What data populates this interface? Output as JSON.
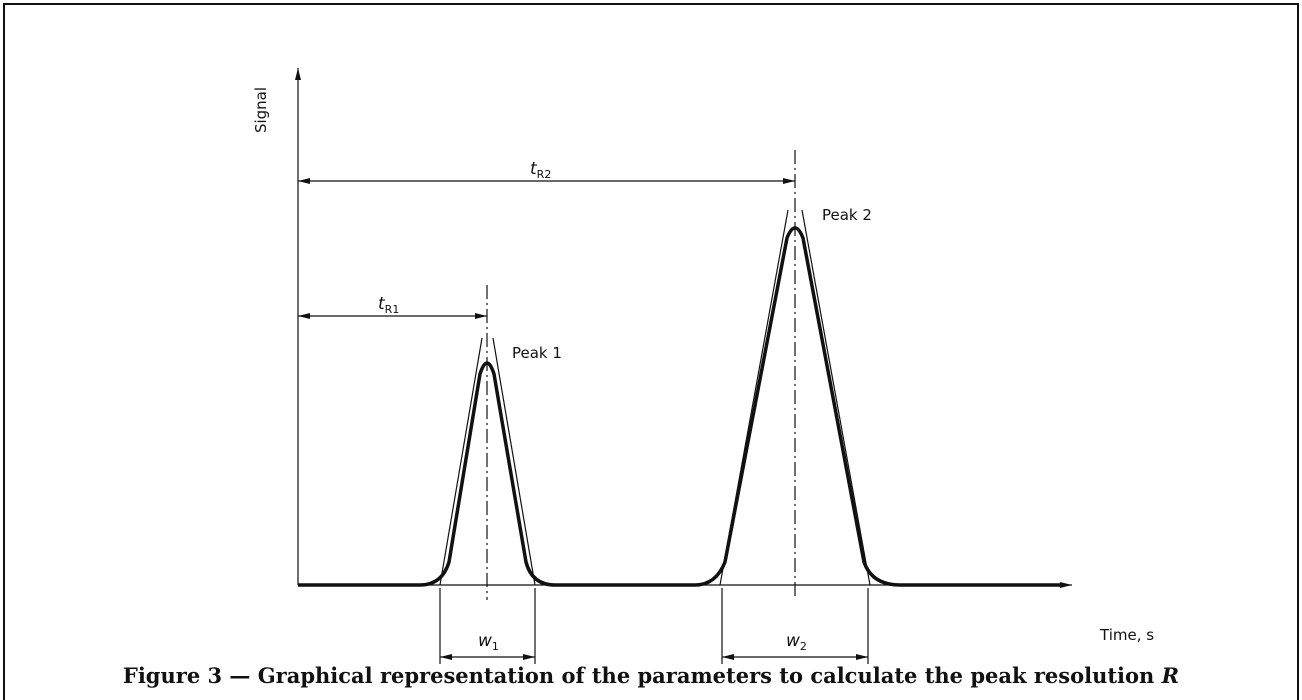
{
  "axes": {
    "y_label": "Signal",
    "x_label": "Time, s"
  },
  "annotations": {
    "t_r1": {
      "symbol": "t",
      "subscript": "R1"
    },
    "t_r2": {
      "symbol": "t",
      "subscript": "R2"
    },
    "w1": {
      "symbol": "w",
      "subscript": "1"
    },
    "w2": {
      "symbol": "w",
      "subscript": "2"
    },
    "peak1": "Peak 1",
    "peak2": "Peak 2"
  },
  "caption": {
    "text": "Figure 3 — Graphical representation of the parameters to calculate the peak resolution",
    "symbol": "R"
  }
}
